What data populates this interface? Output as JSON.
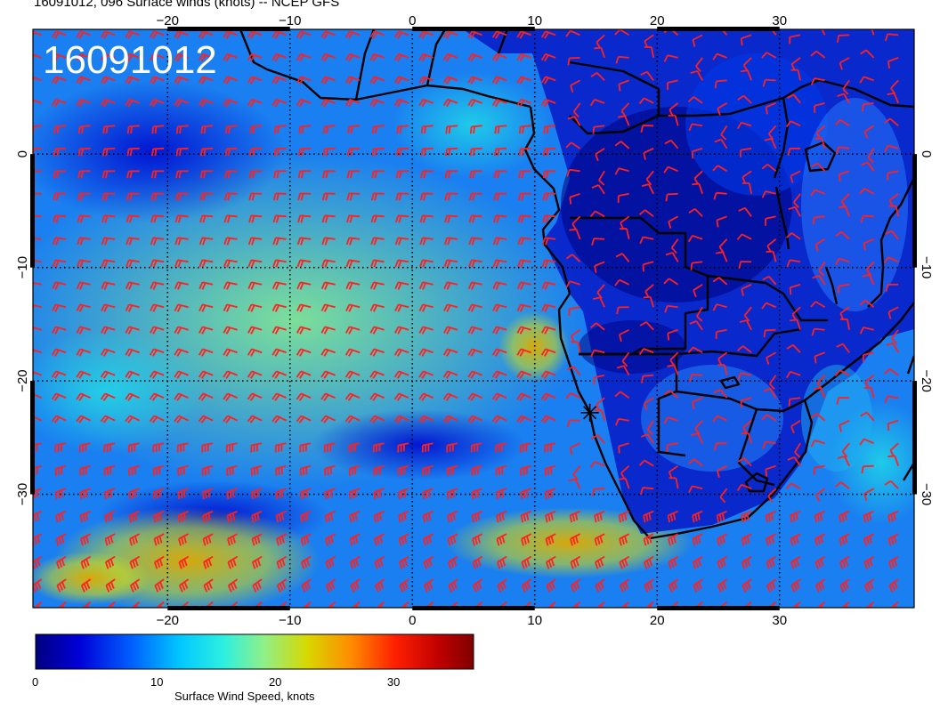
{
  "title": "16091012, 096 Surface winds (knots) -- NCEP GFS",
  "stamp": "16091012",
  "map": {
    "lon_range": [
      -31,
      41
    ],
    "lat_range": [
      -40,
      11
    ],
    "lon_ticks": [
      -20,
      -10,
      0,
      10,
      20,
      30
    ],
    "lon_tick_labels": [
      "−20",
      "−10",
      "0",
      "10",
      "20",
      "30"
    ],
    "lat_ticks": [
      0,
      -10,
      -20,
      -30
    ],
    "lat_tick_labels": [
      "0",
      "−10",
      "−20",
      "−30"
    ],
    "grid": true,
    "barb_color": "#ff2020",
    "coast_color": "#000000",
    "marker": {
      "lon": 14.5,
      "lat": -22.8
    }
  },
  "colorbar": {
    "label": "Surface Wind Speed, knots",
    "range": [
      0,
      37
    ],
    "ticks": [
      0,
      10,
      20,
      30
    ],
    "tick_labels": [
      "0",
      "10",
      "20",
      "30"
    ],
    "colormap": [
      "#00007f",
      "#0000d8",
      "#0060ff",
      "#00c8ff",
      "#2ef0e0",
      "#8ef08a",
      "#d8d800",
      "#ff8c00",
      "#ff2000",
      "#c00000",
      "#7f0000"
    ]
  }
}
